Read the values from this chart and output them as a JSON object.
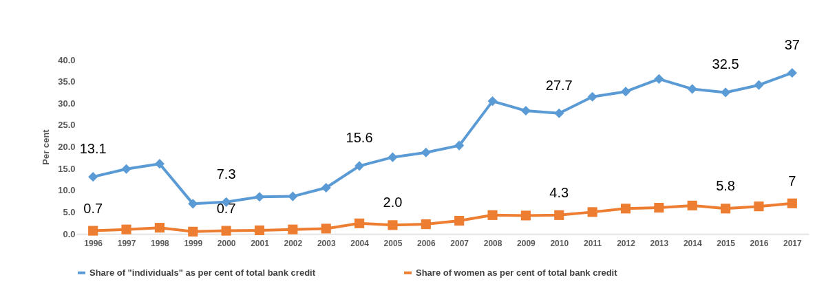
{
  "chart_data": {
    "type": "line",
    "ylabel": "Per cent",
    "categories": [
      "1996",
      "1997",
      "1998",
      "1999",
      "2000",
      "2001",
      "2002",
      "2003",
      "2004",
      "2005",
      "2006",
      "2007",
      "2008",
      "2009",
      "2010",
      "2011",
      "2012",
      "2013",
      "2014",
      "2015",
      "2016",
      "2017"
    ],
    "series": [
      {
        "name": "Share of \"individuals\" as per cent of total bank credit",
        "color": "#5b9bd5",
        "marker": "diamond",
        "values": [
          13.1,
          14.9,
          16.1,
          6.9,
          7.3,
          8.5,
          8.6,
          10.6,
          15.6,
          17.6,
          18.7,
          20.3,
          30.5,
          28.3,
          27.7,
          31.5,
          32.7,
          35.6,
          33.3,
          32.5,
          34.2,
          37
        ],
        "value_labels": [
          "13.1",
          null,
          null,
          null,
          "7.3",
          null,
          null,
          null,
          "15.6",
          null,
          null,
          null,
          null,
          null,
          "27.7",
          null,
          null,
          null,
          null,
          "32.5",
          null,
          "37"
        ]
      },
      {
        "name": "Share of women as per cent of total bank credit",
        "color": "#ed7d31",
        "marker": "square",
        "values": [
          0.7,
          1.0,
          1.4,
          0.5,
          0.7,
          0.8,
          1.0,
          1.2,
          2.4,
          2.0,
          2.2,
          3.0,
          4.3,
          4.2,
          4.3,
          5.0,
          5.8,
          6.0,
          6.5,
          5.8,
          6.3,
          7
        ],
        "value_labels": [
          "0.7",
          null,
          null,
          null,
          "0.7",
          null,
          null,
          null,
          null,
          "2.0",
          null,
          null,
          null,
          null,
          "4.3",
          null,
          null,
          null,
          null,
          "5.8",
          null,
          "7"
        ]
      }
    ],
    "ylim": [
      0,
      40
    ],
    "yticks": [
      {
        "value": 0,
        "label": "0.0"
      },
      {
        "value": 5,
        "label": "5.0"
      },
      {
        "value": 10,
        "label": "10.0"
      },
      {
        "value": 15,
        "label": "15.0"
      },
      {
        "value": 20,
        "label": "20.0"
      },
      {
        "value": 25,
        "label": "25.0"
      },
      {
        "value": 30,
        "label": "30.0"
      },
      {
        "value": 35,
        "label": "35.0"
      },
      {
        "value": 40,
        "label": "40.0"
      }
    ],
    "grid": false,
    "legend": "bottom",
    "line_style": "solid"
  }
}
